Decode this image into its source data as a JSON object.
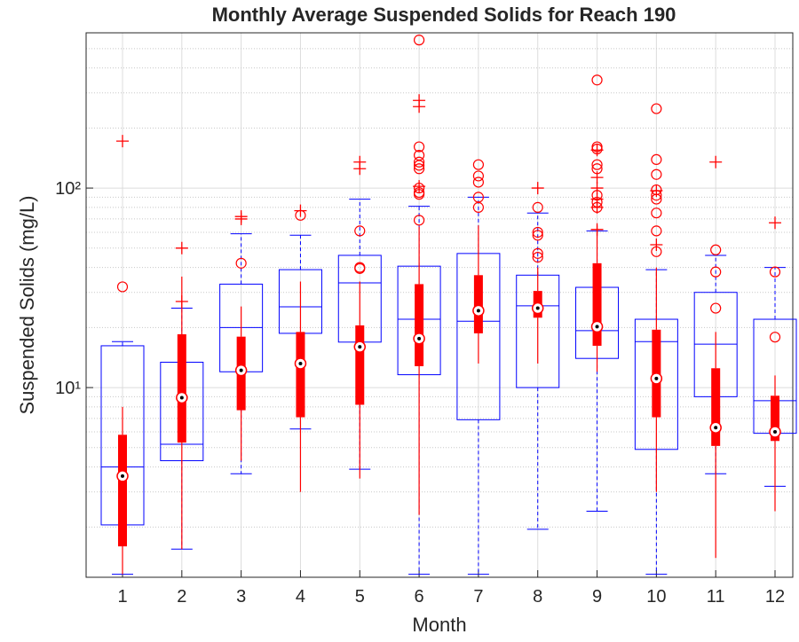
{
  "chart_data": {
    "type": "boxplot",
    "title": "Monthly Average Suspended Solids for Reach 190",
    "xlabel": "Month",
    "ylabel": "Suspended Solids (mg/L)",
    "categories": [
      "1",
      "2",
      "3",
      "4",
      "5",
      "6",
      "7",
      "8",
      "9",
      "10",
      "11",
      "12"
    ],
    "ylim": [
      1.12,
      600
    ],
    "yscale": "log",
    "yticks": [
      {
        "value": 10,
        "label": "10¹"
      },
      {
        "value": 100,
        "label": "10²"
      }
    ],
    "yminorticks": [
      2,
      3,
      4,
      5,
      6,
      7,
      8,
      9,
      20,
      30,
      40,
      50,
      60,
      70,
      80,
      90,
      200,
      300,
      400,
      500
    ],
    "grid": true,
    "outlier_color": "#ff0000",
    "series": [
      {
        "style": "traditional",
        "color": "#0000ff",
        "boxes": [
          {
            "low": 1.16,
            "q1": 2.05,
            "median": 4.0,
            "q3": 16.2,
            "high": 17.0,
            "outliers": [
              172
            ]
          },
          {
            "low": 1.55,
            "q1": 4.3,
            "median": 5.2,
            "q3": 13.4,
            "high": 25,
            "outliers": [
              27,
              50
            ]
          },
          {
            "low": 3.7,
            "q1": 12,
            "median": 20,
            "q3": 33,
            "high": 59,
            "outliers": [
              70,
              72
            ]
          },
          {
            "low": 6.2,
            "q1": 18.7,
            "median": 25.4,
            "q3": 39,
            "high": 58,
            "outliers": [
              77
            ]
          },
          {
            "low": 3.9,
            "q1": 16.9,
            "median": 33.5,
            "q3": 46,
            "high": 88,
            "outliers": [
              125,
              135
            ]
          },
          {
            "low": 1.16,
            "q1": 11.6,
            "median": 22,
            "q3": 40.6,
            "high": 81,
            "outliers": [
              102,
              256,
              275
            ]
          },
          {
            "low": 1.16,
            "q1": 6.9,
            "median": 21.5,
            "q3": 47,
            "high": 90,
            "outliers": []
          },
          {
            "low": 1.95,
            "q1": 10,
            "median": 25.7,
            "q3": 36.6,
            "high": 75,
            "outliers": [
              100
            ]
          },
          {
            "low": 2.4,
            "q1": 14,
            "median": 19.3,
            "q3": 31.8,
            "high": 61,
            "outliers": [
              62,
              80,
              88,
              100,
              113,
              155
            ]
          },
          {
            "low": 1.16,
            "q1": 4.9,
            "median": 17,
            "q3": 22,
            "high": 39,
            "outliers": [
              52,
              97
            ]
          },
          {
            "low": 3.7,
            "q1": 9.0,
            "median": 16.5,
            "q3": 30,
            "high": 46,
            "outliers": [
              135
            ]
          },
          {
            "low": 3.2,
            "q1": 5.9,
            "median": 8.6,
            "q3": 22,
            "high": 40,
            "outliers": [
              67
            ]
          }
        ]
      },
      {
        "style": "compact",
        "color": "#ff0000",
        "boxes": [
          {
            "low": 1.16,
            "q1": 1.6,
            "median": 3.6,
            "q3": 5.8,
            "high": 8.0,
            "outliers": [
              32
            ]
          },
          {
            "low": 1.55,
            "q1": 5.3,
            "median": 8.9,
            "q3": 18.5,
            "high": 36,
            "outliers": []
          },
          {
            "low": 4.3,
            "q1": 7.7,
            "median": 12.2,
            "q3": 18,
            "high": 25.5,
            "outliers": [
              42
            ]
          },
          {
            "low": 3.0,
            "q1": 7.1,
            "median": 13.2,
            "q3": 19,
            "high": 34,
            "outliers": [
              73
            ]
          },
          {
            "low": 3.5,
            "q1": 8.2,
            "median": 16,
            "q3": 20.5,
            "high": 34,
            "outliers": [
              39.5,
              40,
              61
            ]
          },
          {
            "low": 2.3,
            "q1": 12.8,
            "median": 17.6,
            "q3": 33,
            "high": 64,
            "outliers": [
              69,
              93,
              95,
              100,
              125,
              130,
              135,
              146,
              161,
              552
            ]
          },
          {
            "low": 13.2,
            "q1": 18.7,
            "median": 24.3,
            "q3": 36.6,
            "high": 65,
            "outliers": [
              80,
              90,
              107,
              115,
              131
            ]
          },
          {
            "low": 13.2,
            "q1": 22.4,
            "median": 25,
            "q3": 30.5,
            "high": 40,
            "outliers": [
              45,
              47,
              58,
              60,
              80
            ]
          },
          {
            "low": 12,
            "q1": 16.2,
            "median": 20.2,
            "q3": 42,
            "high": 65,
            "outliers": [
              80,
              85,
              92,
              125,
              131,
              157,
              161,
              348
            ]
          },
          {
            "low": 3.0,
            "q1": 7.1,
            "median": 11.1,
            "q3": 19.5,
            "high": 40,
            "outliers": [
              48,
              61,
              75,
              88,
              92,
              98,
              117,
              139,
              250
            ]
          },
          {
            "low": 1.4,
            "q1": 5.1,
            "median": 6.3,
            "q3": 12.5,
            "high": 19,
            "outliers": [
              25,
              38,
              49
            ]
          },
          {
            "low": 2.4,
            "q1": 5.4,
            "median": 6.0,
            "q3": 9.1,
            "high": 11.5,
            "outliers": [
              17.9,
              38
            ]
          }
        ]
      }
    ]
  }
}
